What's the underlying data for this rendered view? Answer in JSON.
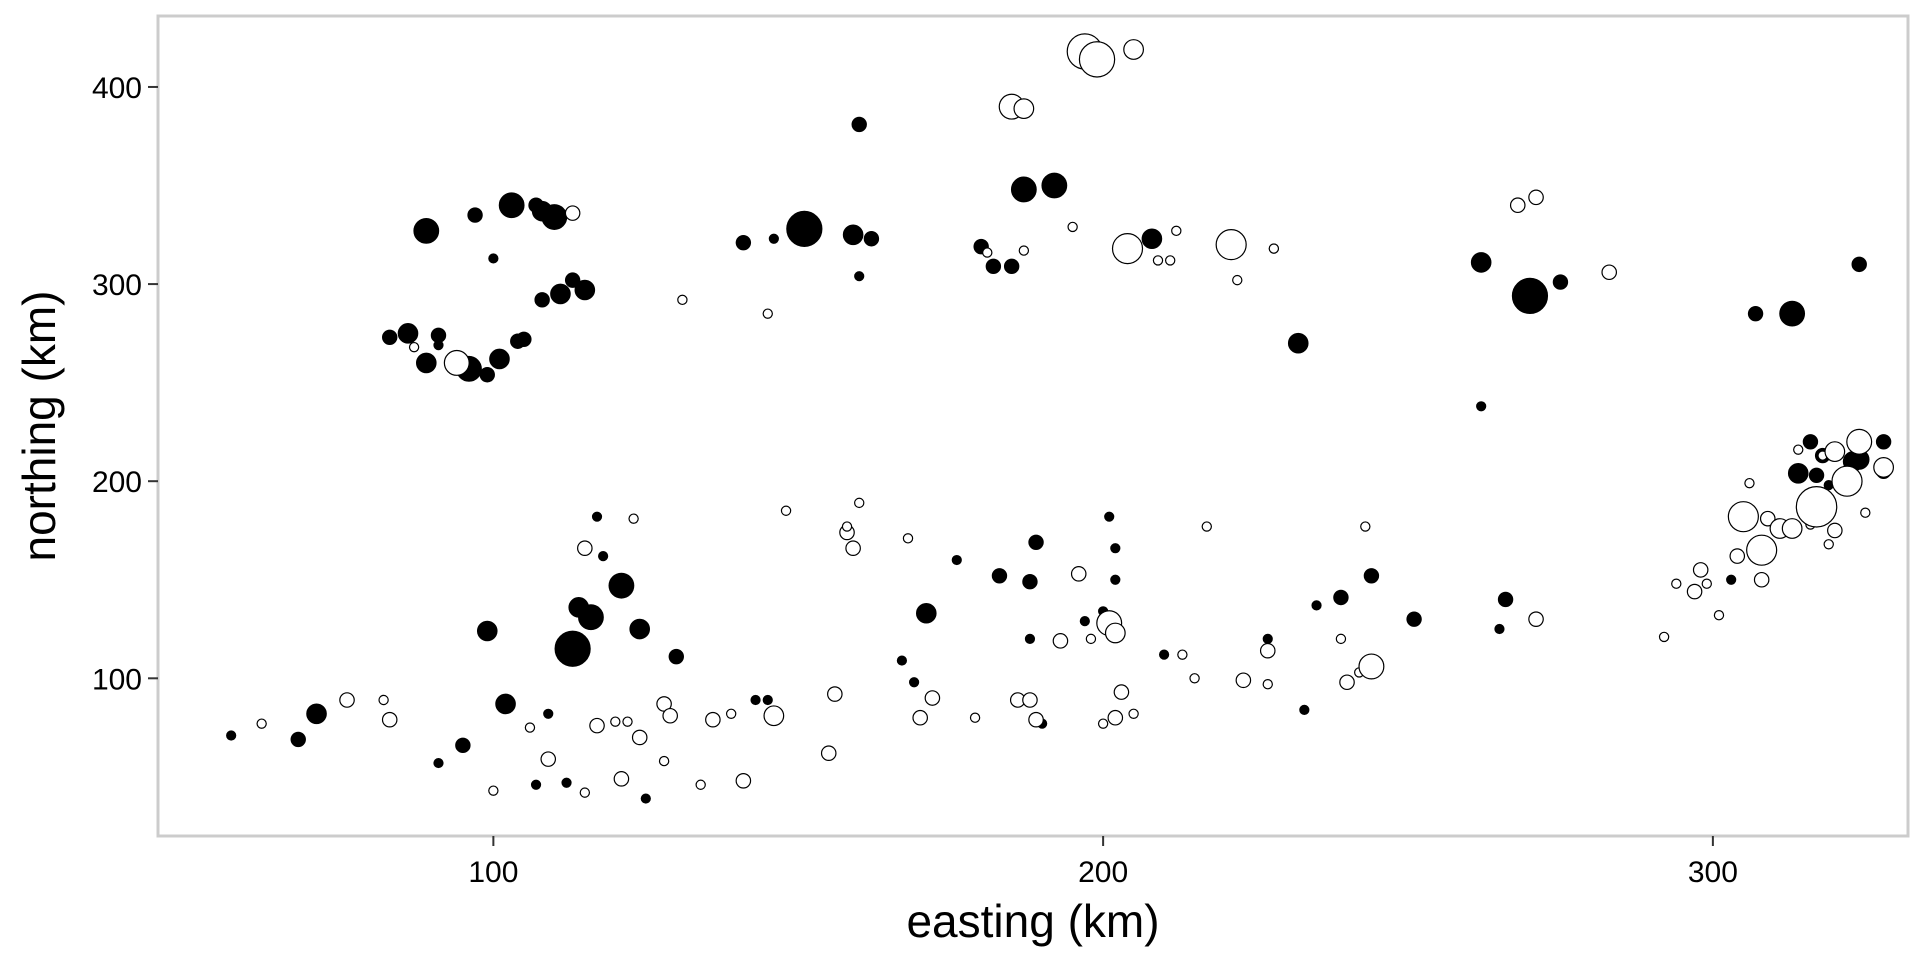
{
  "chart_data": {
    "type": "scatter",
    "title": "",
    "xlabel": "easting (km)",
    "ylabel": "northing (km)",
    "xlim": [
      45,
      332
    ],
    "ylim": [
      20,
      436
    ],
    "x_ticks": [
      100,
      200,
      300
    ],
    "y_ticks": [
      100,
      200,
      300,
      400
    ],
    "grid": false,
    "legend": "none",
    "frame_color": "#cccccc",
    "point_fill_filled": "#000000",
    "point_fill_open": "#ffffff",
    "point_stroke": "#000000",
    "series": [
      {
        "filled": true,
        "points": [
          {
            "x": 57,
            "y": 71,
            "s": 1
          },
          {
            "x": 68,
            "y": 69,
            "s": 2
          },
          {
            "x": 71,
            "y": 82,
            "s": 3
          },
          {
            "x": 83,
            "y": 273,
            "s": 2
          },
          {
            "x": 86,
            "y": 275,
            "s": 3
          },
          {
            "x": 89,
            "y": 260,
            "s": 3
          },
          {
            "x": 89,
            "y": 327,
            "s": 4
          },
          {
            "x": 91,
            "y": 274,
            "s": 2
          },
          {
            "x": 91,
            "y": 269,
            "s": 1
          },
          {
            "x": 91,
            "y": 57,
            "s": 1
          },
          {
            "x": 95,
            "y": 66,
            "s": 2
          },
          {
            "x": 96,
            "y": 257,
            "s": 4
          },
          {
            "x": 97,
            "y": 335,
            "s": 2
          },
          {
            "x": 99,
            "y": 124,
            "s": 3
          },
          {
            "x": 99,
            "y": 254,
            "s": 2
          },
          {
            "x": 100,
            "y": 313,
            "s": 1
          },
          {
            "x": 101,
            "y": 262,
            "s": 3
          },
          {
            "x": 102,
            "y": 87,
            "s": 3
          },
          {
            "x": 103,
            "y": 340,
            "s": 4
          },
          {
            "x": 104,
            "y": 271,
            "s": 2
          },
          {
            "x": 105,
            "y": 272,
            "s": 2
          },
          {
            "x": 107,
            "y": 340,
            "s": 2
          },
          {
            "x": 107,
            "y": 46,
            "s": 1
          },
          {
            "x": 108,
            "y": 337,
            "s": 3
          },
          {
            "x": 108,
            "y": 292,
            "s": 2
          },
          {
            "x": 109,
            "y": 82,
            "s": 1
          },
          {
            "x": 110,
            "y": 335,
            "s": 3
          },
          {
            "x": 110,
            "y": 334,
            "s": 4
          },
          {
            "x": 111,
            "y": 295,
            "s": 3
          },
          {
            "x": 112,
            "y": 47,
            "s": 1
          },
          {
            "x": 113,
            "y": 302,
            "s": 2
          },
          {
            "x": 113,
            "y": 115,
            "s": 6
          },
          {
            "x": 114,
            "y": 136,
            "s": 3
          },
          {
            "x": 115,
            "y": 297,
            "s": 3
          },
          {
            "x": 116,
            "y": 131,
            "s": 4
          },
          {
            "x": 117,
            "y": 182,
            "s": 1
          },
          {
            "x": 118,
            "y": 162,
            "s": 1
          },
          {
            "x": 121,
            "y": 147,
            "s": 4
          },
          {
            "x": 124,
            "y": 125,
            "s": 3
          },
          {
            "x": 125,
            "y": 39,
            "s": 1
          },
          {
            "x": 130,
            "y": 111,
            "s": 2
          },
          {
            "x": 141,
            "y": 321,
            "s": 2
          },
          {
            "x": 143,
            "y": 89,
            "s": 1
          },
          {
            "x": 145,
            "y": 89,
            "s": 1
          },
          {
            "x": 146,
            "y": 323,
            "s": 1
          },
          {
            "x": 151,
            "y": 328,
            "s": 6
          },
          {
            "x": 159,
            "y": 325,
            "s": 3
          },
          {
            "x": 160,
            "y": 381,
            "s": 2
          },
          {
            "x": 160,
            "y": 304,
            "s": 1
          },
          {
            "x": 162,
            "y": 323,
            "s": 2
          },
          {
            "x": 167,
            "y": 109,
            "s": 1
          },
          {
            "x": 169,
            "y": 98,
            "s": 1
          },
          {
            "x": 171,
            "y": 133,
            "s": 3
          },
          {
            "x": 176,
            "y": 160,
            "s": 1
          },
          {
            "x": 180,
            "y": 319,
            "s": 2
          },
          {
            "x": 182,
            "y": 309,
            "s": 2
          },
          {
            "x": 183,
            "y": 152,
            "s": 2
          },
          {
            "x": 185,
            "y": 309,
            "s": 2
          },
          {
            "x": 187,
            "y": 348,
            "s": 4
          },
          {
            "x": 188,
            "y": 149,
            "s": 2
          },
          {
            "x": 188,
            "y": 120,
            "s": 1
          },
          {
            "x": 189,
            "y": 169,
            "s": 2
          },
          {
            "x": 190,
            "y": 77,
            "s": 1
          },
          {
            "x": 192,
            "y": 350,
            "s": 4
          },
          {
            "x": 197,
            "y": 129,
            "s": 1
          },
          {
            "x": 200,
            "y": 134,
            "s": 1
          },
          {
            "x": 201,
            "y": 182,
            "s": 1
          },
          {
            "x": 202,
            "y": 166,
            "s": 1
          },
          {
            "x": 202,
            "y": 150,
            "s": 1
          },
          {
            "x": 208,
            "y": 323,
            "s": 3
          },
          {
            "x": 210,
            "y": 112,
            "s": 1
          },
          {
            "x": 227,
            "y": 120,
            "s": 1
          },
          {
            "x": 228,
            "y": 318,
            "s": 1
          },
          {
            "x": 232,
            "y": 270,
            "s": 3
          },
          {
            "x": 233,
            "y": 84,
            "s": 1
          },
          {
            "x": 235,
            "y": 137,
            "s": 1
          },
          {
            "x": 239,
            "y": 141,
            "s": 2
          },
          {
            "x": 244,
            "y": 152,
            "s": 2
          },
          {
            "x": 251,
            "y": 130,
            "s": 2
          },
          {
            "x": 262,
            "y": 311,
            "s": 3
          },
          {
            "x": 262,
            "y": 238,
            "s": 1
          },
          {
            "x": 265,
            "y": 125,
            "s": 1
          },
          {
            "x": 266,
            "y": 140,
            "s": 2
          },
          {
            "x": 270,
            "y": 294,
            "s": 6
          },
          {
            "x": 275,
            "y": 301,
            "s": 2
          },
          {
            "x": 303,
            "y": 150,
            "s": 1
          },
          {
            "x": 307,
            "y": 285,
            "s": 2
          },
          {
            "x": 309,
            "y": 181,
            "s": 2
          },
          {
            "x": 313,
            "y": 285,
            "s": 4
          },
          {
            "x": 314,
            "y": 204,
            "s": 3
          },
          {
            "x": 316,
            "y": 220,
            "s": 2
          },
          {
            "x": 317,
            "y": 203,
            "s": 2
          },
          {
            "x": 318,
            "y": 213,
            "s": 2
          },
          {
            "x": 319,
            "y": 198,
            "s": 1
          },
          {
            "x": 321,
            "y": 202,
            "s": 1
          },
          {
            "x": 323,
            "y": 210,
            "s": 3
          },
          {
            "x": 324,
            "y": 211,
            "s": 3
          },
          {
            "x": 324,
            "y": 310,
            "s": 2
          },
          {
            "x": 328,
            "y": 220,
            "s": 2
          },
          {
            "x": 328,
            "y": 205,
            "s": 2
          }
        ]
      },
      {
        "filled": false,
        "points": [
          {
            "x": 62,
            "y": 77,
            "s": 1
          },
          {
            "x": 76,
            "y": 89,
            "s": 2
          },
          {
            "x": 82,
            "y": 89,
            "s": 1
          },
          {
            "x": 83,
            "y": 79,
            "s": 2
          },
          {
            "x": 87,
            "y": 268,
            "s": 1
          },
          {
            "x": 94,
            "y": 260,
            "s": 4
          },
          {
            "x": 100,
            "y": 43,
            "s": 1
          },
          {
            "x": 106,
            "y": 75,
            "s": 1
          },
          {
            "x": 109,
            "y": 59,
            "s": 2
          },
          {
            "x": 113,
            "y": 336,
            "s": 2
          },
          {
            "x": 115,
            "y": 166,
            "s": 2
          },
          {
            "x": 115,
            "y": 42,
            "s": 1
          },
          {
            "x": 117,
            "y": 76,
            "s": 2
          },
          {
            "x": 120,
            "y": 78,
            "s": 1
          },
          {
            "x": 121,
            "y": 49,
            "s": 2
          },
          {
            "x": 122,
            "y": 78,
            "s": 1
          },
          {
            "x": 123,
            "y": 181,
            "s": 1
          },
          {
            "x": 124,
            "y": 70,
            "s": 2
          },
          {
            "x": 128,
            "y": 58,
            "s": 1
          },
          {
            "x": 128,
            "y": 87,
            "s": 2
          },
          {
            "x": 129,
            "y": 81,
            "s": 2
          },
          {
            "x": 131,
            "y": 292,
            "s": 1
          },
          {
            "x": 134,
            "y": 46,
            "s": 1
          },
          {
            "x": 136,
            "y": 79,
            "s": 2
          },
          {
            "x": 139,
            "y": 82,
            "s": 1
          },
          {
            "x": 141,
            "y": 48,
            "s": 2
          },
          {
            "x": 145,
            "y": 285,
            "s": 1
          },
          {
            "x": 146,
            "y": 81,
            "s": 3
          },
          {
            "x": 148,
            "y": 185,
            "s": 1
          },
          {
            "x": 155,
            "y": 62,
            "s": 2
          },
          {
            "x": 156,
            "y": 92,
            "s": 2
          },
          {
            "x": 158,
            "y": 174,
            "s": 2
          },
          {
            "x": 158,
            "y": 177,
            "s": 1
          },
          {
            "x": 159,
            "y": 166,
            "s": 2
          },
          {
            "x": 160,
            "y": 189,
            "s": 1
          },
          {
            "x": 168,
            "y": 171,
            "s": 1
          },
          {
            "x": 170,
            "y": 80,
            "s": 2
          },
          {
            "x": 172,
            "y": 90,
            "s": 2
          },
          {
            "x": 179,
            "y": 80,
            "s": 1
          },
          {
            "x": 181,
            "y": 316,
            "s": 1
          },
          {
            "x": 185,
            "y": 390,
            "s": 4
          },
          {
            "x": 186,
            "y": 89,
            "s": 2
          },
          {
            "x": 187,
            "y": 389,
            "s": 3
          },
          {
            "x": 187,
            "y": 317,
            "s": 1
          },
          {
            "x": 188,
            "y": 89,
            "s": 2
          },
          {
            "x": 189,
            "y": 79,
            "s": 2
          },
          {
            "x": 193,
            "y": 119,
            "s": 2
          },
          {
            "x": 195,
            "y": 329,
            "s": 1
          },
          {
            "x": 196,
            "y": 153,
            "s": 2
          },
          {
            "x": 197,
            "y": 418,
            "s": 6
          },
          {
            "x": 198,
            "y": 120,
            "s": 1
          },
          {
            "x": 199,
            "y": 414,
            "s": 6
          },
          {
            "x": 200,
            "y": 77,
            "s": 1
          },
          {
            "x": 201,
            "y": 128,
            "s": 4
          },
          {
            "x": 202,
            "y": 123,
            "s": 3
          },
          {
            "x": 202,
            "y": 80,
            "s": 2
          },
          {
            "x": 203,
            "y": 93,
            "s": 2
          },
          {
            "x": 205,
            "y": 419,
            "s": 3
          },
          {
            "x": 205,
            "y": 82,
            "s": 1
          },
          {
            "x": 204,
            "y": 318,
            "s": 5
          },
          {
            "x": 209,
            "y": 312,
            "s": 1
          },
          {
            "x": 211,
            "y": 312,
            "s": 1
          },
          {
            "x": 212,
            "y": 327,
            "s": 1
          },
          {
            "x": 213,
            "y": 112,
            "s": 1
          },
          {
            "x": 215,
            "y": 100,
            "s": 1
          },
          {
            "x": 217,
            "y": 177,
            "s": 1
          },
          {
            "x": 220,
            "y": 324,
            "s": 1
          },
          {
            "x": 221,
            "y": 320,
            "s": 5
          },
          {
            "x": 222,
            "y": 302,
            "s": 1
          },
          {
            "x": 223,
            "y": 99,
            "s": 2
          },
          {
            "x": 227,
            "y": 97,
            "s": 1
          },
          {
            "x": 227,
            "y": 114,
            "s": 2
          },
          {
            "x": 228,
            "y": 318,
            "s": 1
          },
          {
            "x": 239,
            "y": 120,
            "s": 1
          },
          {
            "x": 240,
            "y": 98,
            "s": 2
          },
          {
            "x": 242,
            "y": 103,
            "s": 1
          },
          {
            "x": 244,
            "y": 106,
            "s": 4
          },
          {
            "x": 243,
            "y": 177,
            "s": 1
          },
          {
            "x": 268,
            "y": 340,
            "s": 2
          },
          {
            "x": 271,
            "y": 344,
            "s": 2
          },
          {
            "x": 271,
            "y": 130,
            "s": 2
          },
          {
            "x": 283,
            "y": 306,
            "s": 2
          },
          {
            "x": 292,
            "y": 121,
            "s": 1
          },
          {
            "x": 294,
            "y": 148,
            "s": 1
          },
          {
            "x": 297,
            "y": 144,
            "s": 2
          },
          {
            "x": 298,
            "y": 155,
            "s": 1
          },
          {
            "x": 298,
            "y": 155,
            "s": 2
          },
          {
            "x": 299,
            "y": 148,
            "s": 1
          },
          {
            "x": 301,
            "y": 132,
            "s": 1
          },
          {
            "x": 304,
            "y": 162,
            "s": 2
          },
          {
            "x": 305,
            "y": 182,
            "s": 5
          },
          {
            "x": 306,
            "y": 199,
            "s": 1
          },
          {
            "x": 308,
            "y": 150,
            "s": 2
          },
          {
            "x": 308,
            "y": 165,
            "s": 5
          },
          {
            "x": 309,
            "y": 181,
            "s": 2
          },
          {
            "x": 311,
            "y": 176,
            "s": 3
          },
          {
            "x": 313,
            "y": 176,
            "s": 3
          },
          {
            "x": 314,
            "y": 216,
            "s": 1
          },
          {
            "x": 316,
            "y": 178,
            "s": 1
          },
          {
            "x": 317,
            "y": 187,
            "s": 7
          },
          {
            "x": 318,
            "y": 213,
            "s": 1
          },
          {
            "x": 319,
            "y": 168,
            "s": 1
          },
          {
            "x": 320,
            "y": 175,
            "s": 2
          },
          {
            "x": 320,
            "y": 215,
            "s": 3
          },
          {
            "x": 322,
            "y": 200,
            "s": 5
          },
          {
            "x": 324,
            "y": 220,
            "s": 4
          },
          {
            "x": 325,
            "y": 184,
            "s": 1
          },
          {
            "x": 328,
            "y": 207,
            "s": 3
          }
        ]
      }
    ]
  }
}
